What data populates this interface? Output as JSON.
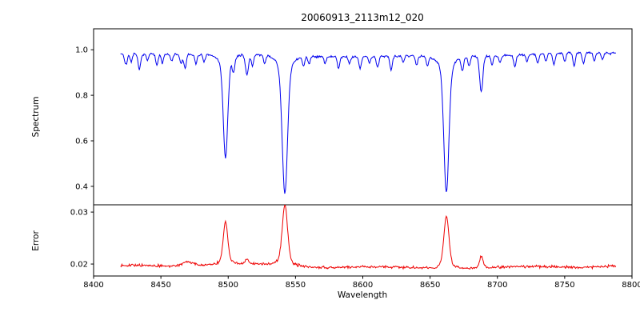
{
  "figure_title": "20060913_2113m12_020",
  "chart_data": {
    "type": "line",
    "title": "20060913_2113m12_020",
    "xlabel": "Wavelength",
    "x_range": [
      8400,
      8800
    ],
    "x_data_range": [
      8420,
      8788
    ],
    "x_step": 0.5,
    "x_ticks": [
      8400,
      8450,
      8500,
      8550,
      8600,
      8650,
      8700,
      8750,
      8800
    ],
    "x_tick_labels": [
      "8400",
      "8450",
      "8500",
      "8550",
      "8600",
      "8650",
      "8700",
      "8750",
      "8800"
    ],
    "panels": [
      {
        "ylabel": "Spectrum",
        "ylim": [
          0.319,
          1.092
        ],
        "ytick_values": [
          1.0,
          0.8,
          0.6,
          0.4
        ],
        "ytick_labels": [
          "1.0",
          "0.8",
          "0.6",
          "0.4"
        ],
        "series": {
          "name": "normalized-spectrum",
          "color": "#0000ee",
          "baseline": 0.978,
          "noise_amp": 0.0085,
          "seed": 7,
          "strong_lines": [
            {
              "center": 8498.0,
              "depth": 0.46,
              "sigma": 1.6,
              "gamma": 3.0
            },
            {
              "center": 8542.1,
              "depth": 0.615,
              "sigma": 1.9,
              "gamma": 3.5
            },
            {
              "center": 8662.1,
              "depth": 0.605,
              "sigma": 1.8,
              "gamma": 3.4
            }
          ],
          "weak_lines": [
            [
              8424,
              0.05,
              1.0
            ],
            [
              8428,
              0.04,
              0.8
            ],
            [
              8434,
              0.07,
              1.0
            ],
            [
              8440,
              0.03,
              0.8
            ],
            [
              8447,
              0.05,
              0.9
            ],
            [
              8451,
              0.04,
              0.8
            ],
            [
              8458,
              0.03,
              0.8
            ],
            [
              8465,
              0.04,
              0.9
            ],
            [
              8468,
              0.06,
              0.9
            ],
            [
              8476,
              0.04,
              0.8
            ],
            [
              8482,
              0.03,
              0.8
            ],
            [
              8504,
              0.06,
              0.9
            ],
            [
              8514,
              0.09,
              1.1
            ],
            [
              8518,
              0.05,
              0.9
            ],
            [
              8527,
              0.04,
              0.8
            ],
            [
              8556,
              0.04,
              0.9
            ],
            [
              8560,
              0.03,
              0.8
            ],
            [
              8572,
              0.03,
              0.8
            ],
            [
              8582,
              0.05,
              0.9
            ],
            [
              8590,
              0.03,
              0.8
            ],
            [
              8598,
              0.05,
              0.9
            ],
            [
              8605,
              0.03,
              0.8
            ],
            [
              8611,
              0.05,
              0.9
            ],
            [
              8621,
              0.06,
              0.9
            ],
            [
              8630,
              0.03,
              0.8
            ],
            [
              8640,
              0.04,
              0.8
            ],
            [
              8648,
              0.04,
              0.8
            ],
            [
              8674,
              0.06,
              0.9
            ],
            [
              8679,
              0.04,
              0.8
            ],
            [
              8688,
              0.16,
              1.2
            ],
            [
              8696,
              0.04,
              0.8
            ],
            [
              8702,
              0.03,
              0.8
            ],
            [
              8713,
              0.05,
              0.9
            ],
            [
              8722,
              0.03,
              0.8
            ],
            [
              8730,
              0.04,
              0.8
            ],
            [
              8736,
              0.03,
              0.8
            ],
            [
              8742,
              0.05,
              0.9
            ],
            [
              8750,
              0.04,
              0.8
            ],
            [
              8757,
              0.06,
              0.9
            ],
            [
              8764,
              0.05,
              0.9
            ],
            [
              8772,
              0.04,
              0.8
            ],
            [
              8778,
              0.03,
              0.8
            ]
          ]
        }
      },
      {
        "ylabel": "Error",
        "ylim": [
          0.0177,
          0.0314
        ],
        "ytick_values": [
          0.03,
          0.02
        ],
        "ytick_labels": [
          "0.03",
          "0.02"
        ],
        "series": {
          "name": "error",
          "color": "#ee0000",
          "baseline": 0.0195,
          "noise_amp": 0.0004,
          "seed": 13,
          "peaks": [
            [
              8470.0,
              0.0008,
              4.0
            ],
            [
              8498.0,
              0.0082,
              1.6
            ],
            [
              8514.0,
              0.0008,
              1.2
            ],
            [
              8542.1,
              0.0118,
              1.9
            ],
            [
              8662.1,
              0.0102,
              1.8
            ],
            [
              8688.0,
              0.0022,
              1.2
            ]
          ]
        }
      }
    ],
    "layout": {
      "legend": "none",
      "grid": false,
      "axis_color": "#000000",
      "plot_left": 117,
      "plot_right": 790,
      "panel1_top": 36,
      "panel1_bottom": 256,
      "panel2_top": 256,
      "panel2_bottom": 345
    }
  }
}
